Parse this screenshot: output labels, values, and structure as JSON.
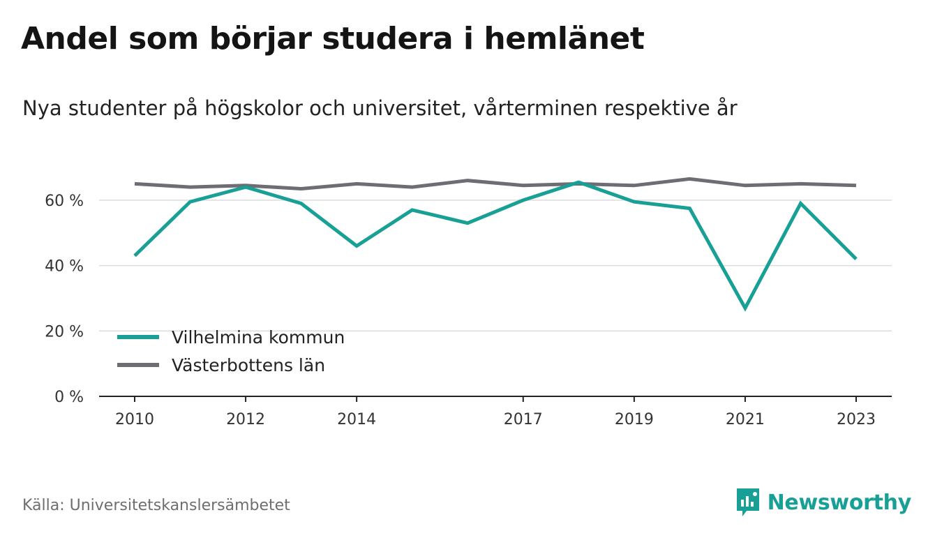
{
  "header": {
    "title": "Andel som börjar studera i hemlänet",
    "subtitle": "Nya studenter på högskolor och universitet, vårterminen respektive år"
  },
  "footer": {
    "source": "Källa: Universitetskanslersämbetet",
    "brand": "Newsworthy",
    "brand_icon": "newsworthy-logo-icon",
    "brand_color": "#18a096"
  },
  "chart_data": {
    "type": "line",
    "title": "Andel som börjar studera i hemlänet",
    "subtitle": "Nya studenter på högskolor och universitet, vårterminen respektive år",
    "x": [
      2010,
      2011,
      2012,
      2013,
      2014,
      2015,
      2016,
      2017,
      2018,
      2019,
      2020,
      2021,
      2022,
      2023
    ],
    "x_tick_labels": [
      "2010",
      "2012",
      "2014",
      "2017",
      "2019",
      "2021",
      "2023"
    ],
    "y_tick_labels": [
      "0 %",
      "20 %",
      "40 %",
      "60 %"
    ],
    "ylim": [
      0,
      70
    ],
    "grid": true,
    "legend_position": "bottom-left",
    "series": [
      {
        "name": "Vilhelmina kommun",
        "color": "#18a096",
        "values": [
          43,
          59.5,
          64,
          59,
          46,
          57,
          53,
          60,
          65.5,
          59.5,
          57.5,
          27,
          59,
          42
        ]
      },
      {
        "name": "Västerbottens län",
        "color": "#6e6d73",
        "values": [
          65,
          64,
          64.5,
          63.5,
          65,
          64,
          66,
          64.5,
          65,
          64.5,
          66.5,
          64.5,
          65,
          64.5
        ]
      }
    ]
  }
}
